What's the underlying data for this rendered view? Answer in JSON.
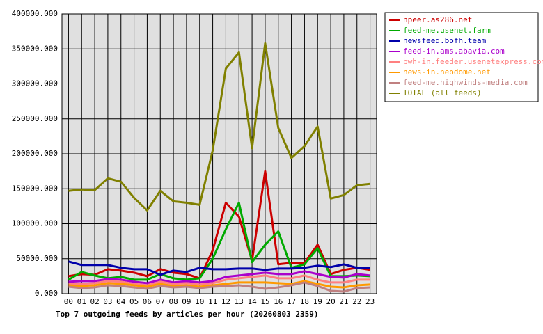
{
  "chart_data": {
    "type": "line",
    "title": "Top 7 outgoing feeds by articles per hour (20260803 2359)",
    "categories": [
      "00",
      "01",
      "02",
      "03",
      "04",
      "05",
      "06",
      "07",
      "08",
      "09",
      "10",
      "11",
      "12",
      "13",
      "14",
      "15",
      "16",
      "17",
      "18",
      "19",
      "20",
      "21",
      "22",
      "23"
    ],
    "ylim": [
      0,
      400000
    ],
    "yticks": [
      {
        "value": 0,
        "label": "0.000"
      },
      {
        "value": 50000,
        "label": "50000.000"
      },
      {
        "value": 100000,
        "label": "100000.000"
      },
      {
        "value": 150000,
        "label": "150000.000"
      },
      {
        "value": 200000,
        "label": "200000.000"
      },
      {
        "value": 250000,
        "label": "250000.000"
      },
      {
        "value": 300000,
        "label": "300000.000"
      },
      {
        "value": 350000,
        "label": "350000.000"
      },
      {
        "value": 400000,
        "label": "400000.000"
      }
    ],
    "grid": true,
    "legend": "right",
    "series": [
      {
        "name": "npeer.as286.net",
        "color": "#cc0000",
        "values": [
          25000,
          28000,
          27000,
          35000,
          33000,
          30000,
          25000,
          35000,
          30000,
          28000,
          22000,
          62000,
          130000,
          110000,
          47000,
          175000,
          42000,
          44000,
          44000,
          70000,
          28000,
          34000,
          37000,
          34000
        ]
      },
      {
        "name": "feed-me.usenet.farm",
        "color": "#00aa00",
        "values": [
          20000,
          31000,
          26000,
          22000,
          24000,
          20000,
          20000,
          28000,
          22000,
          20000,
          22000,
          50000,
          92000,
          130000,
          45000,
          70000,
          89000,
          37000,
          42000,
          65000,
          25000,
          25000,
          26000,
          25000
        ]
      },
      {
        "name": "newsfeed.bofh.team",
        "color": "#0000aa",
        "values": [
          46000,
          41000,
          41000,
          41000,
          37000,
          35000,
          35000,
          27000,
          33000,
          31000,
          37000,
          35000,
          35000,
          36000,
          36000,
          34000,
          36000,
          36000,
          37000,
          40000,
          38000,
          42000,
          37000,
          37000
        ]
      },
      {
        "name": "feed-in.ams.abavia.com",
        "color": "#aa00cc",
        "values": [
          17000,
          18000,
          18000,
          21000,
          20000,
          17000,
          15000,
          20000,
          16000,
          18000,
          16000,
          18000,
          24000,
          26000,
          28000,
          30000,
          28000,
          28000,
          32000,
          28000,
          24000,
          23000,
          28000,
          26000
        ]
      },
      {
        "name": "bwh-in.feeder.usenetexpress.com",
        "color": "#ff8080",
        "values": [
          14000,
          14000,
          15000,
          18000,
          17000,
          14000,
          12000,
          17000,
          14000,
          15000,
          13000,
          15000,
          20000,
          22000,
          24000,
          26000,
          22000,
          22000,
          26000,
          20000,
          16000,
          16000,
          20000,
          20000
        ]
      },
      {
        "name": "news-in.neodome.net",
        "color": "#ff9900",
        "values": [
          12000,
          11000,
          12000,
          15000,
          14000,
          12000,
          10000,
          14000,
          11000,
          12000,
          10000,
          12000,
          14000,
          16000,
          16000,
          16000,
          15000,
          14000,
          18000,
          14000,
          10000,
          9000,
          12000,
          13000
        ]
      },
      {
        "name": "feed-me.highwinds-media.com",
        "color": "#c08080",
        "values": [
          10000,
          8000,
          9000,
          12000,
          11000,
          9000,
          7000,
          11000,
          9000,
          10000,
          8000,
          10000,
          11000,
          12000,
          10000,
          7000,
          9000,
          12000,
          16000,
          11000,
          4000,
          3000,
          8000,
          9000
        ]
      },
      {
        "name": "TOTAL (all feeds)",
        "color": "#808000",
        "values": [
          147000,
          149000,
          148000,
          165000,
          160000,
          137000,
          119000,
          147000,
          132000,
          130000,
          127000,
          205000,
          322000,
          345000,
          208000,
          358000,
          237000,
          194000,
          211000,
          239000,
          136000,
          141000,
          155000,
          157000
        ]
      }
    ]
  }
}
